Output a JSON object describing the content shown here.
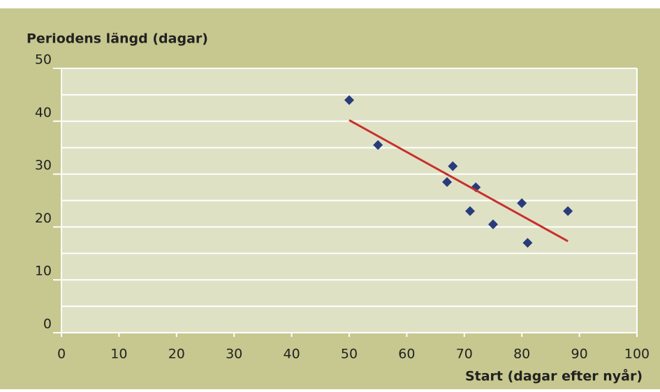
{
  "chart_data": {
    "type": "scatter",
    "y_axis_label": "Periodens längd (dagar)",
    "x_axis_label": "Start (dagar efter nyår)",
    "xlim": [
      0,
      100
    ],
    "xticks": [
      0,
      10,
      20,
      30,
      40,
      50,
      60,
      70,
      80,
      90,
      100
    ],
    "ylim": [
      0,
      50
    ],
    "yticks": [
      0,
      10,
      20,
      30,
      40,
      50
    ],
    "y_minor_grid": [
      5,
      15,
      25,
      35,
      45
    ],
    "grid": true,
    "series": [
      {
        "color": "#283c7c",
        "marker": "diamond",
        "x": [
          50,
          55,
          67,
          68,
          71,
          72,
          75,
          80,
          81,
          88
        ],
        "values": [
          44,
          35.5,
          28.5,
          31.5,
          23,
          27.5,
          20.5,
          24.5,
          17,
          23
        ]
      },
      {
        "color": "#c8302c",
        "marker": "line",
        "x": [
          50,
          88
        ],
        "values": [
          40.2,
          17.3
        ]
      }
    ]
  }
}
